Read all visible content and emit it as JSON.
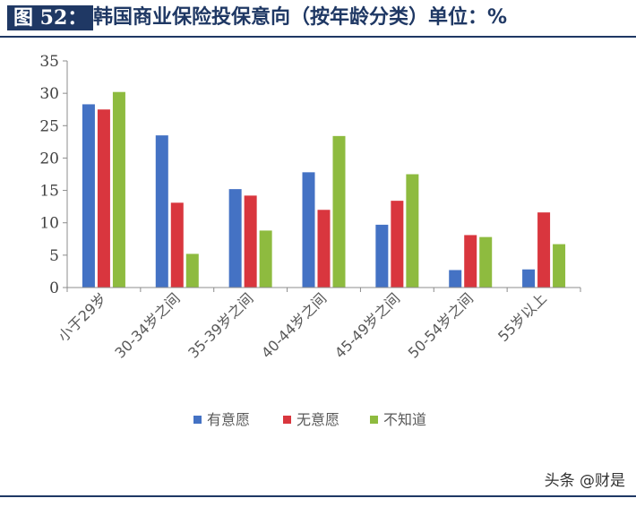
{
  "header": {
    "figure_label": "图 52：",
    "title": "韩国商业保险投保意向（按年龄分类）单位：%"
  },
  "chart_data": {
    "type": "bar",
    "categories": [
      "小于29岁",
      "30-34岁之间",
      "35-39岁之间",
      "40-44岁之间",
      "45-49岁之间",
      "50-54岁之间",
      "55岁以上"
    ],
    "series": [
      {
        "name": "有意愿",
        "color": "#4472c4",
        "values": [
          28.3,
          23.5,
          15.2,
          17.8,
          9.7,
          2.7,
          2.8
        ]
      },
      {
        "name": "无意愿",
        "color": "#d9363e",
        "values": [
          27.5,
          13.1,
          14.2,
          12.0,
          13.4,
          8.1,
          11.6
        ]
      },
      {
        "name": "不知道",
        "color": "#8ebb3f",
        "values": [
          30.2,
          5.2,
          8.8,
          23.4,
          17.5,
          7.8,
          6.7
        ]
      }
    ],
    "ylim": [
      0,
      35
    ],
    "yticks": [
      "0",
      "5",
      "10",
      "15",
      "20",
      "25",
      "30",
      "35"
    ],
    "grid": false,
    "legend_position": "bottom"
  },
  "watermark": "头条 @财是"
}
